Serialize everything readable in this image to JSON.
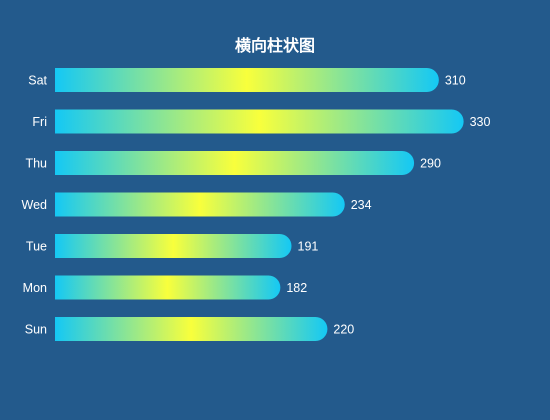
{
  "chart_data": {
    "type": "bar",
    "orientation": "horizontal",
    "title": "横向柱状图",
    "categories": [
      "Sat",
      "Fri",
      "Thu",
      "Wed",
      "Tue",
      "Mon",
      "Sun"
    ],
    "values": [
      310,
      330,
      290,
      234,
      191,
      182,
      220
    ],
    "xlim": [
      0,
      340
    ],
    "grid": false,
    "legend": "none",
    "data_labels": true
  },
  "colors": {
    "background": "#235a8c",
    "bar_gradient_end": "#14c8f5",
    "bar_gradient_middle": "#f8ff3c",
    "text": "#ffffff"
  }
}
